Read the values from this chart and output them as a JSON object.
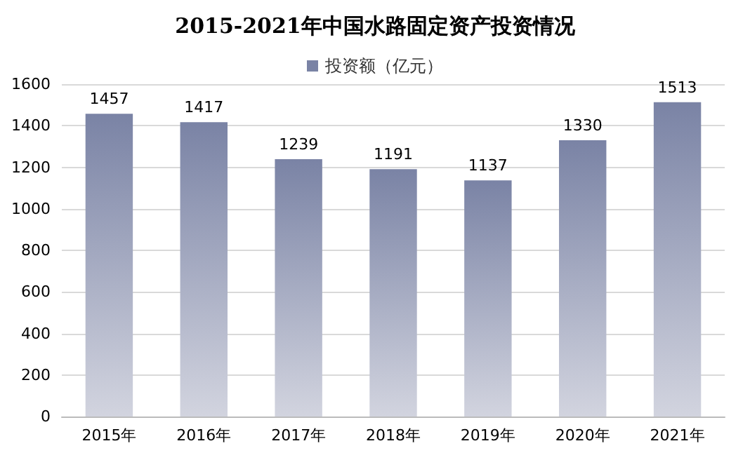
{
  "chart_data": {
    "type": "bar",
    "title": "2015-2021年中国水路固定资产投资情况",
    "categories": [
      "2015年",
      "2016年",
      "2017年",
      "2018年",
      "2019年",
      "2020年",
      "2021年"
    ],
    "series": [
      {
        "name": "投资额（亿元）",
        "color": "#7a83a5",
        "values": [
          1457,
          1417,
          1239,
          1191,
          1137,
          1330,
          1513
        ]
      }
    ],
    "ylim": [
      0,
      1600
    ],
    "yticks": [
      0,
      200,
      400,
      600,
      800,
      1000,
      1200,
      1400,
      1600
    ],
    "grid": "y",
    "legend": "top",
    "data_labels": true
  }
}
